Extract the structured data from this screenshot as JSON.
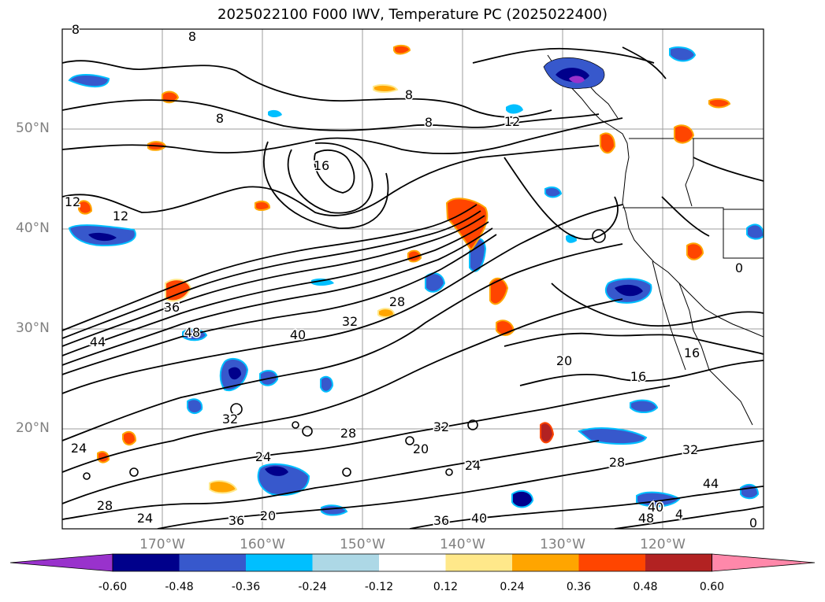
{
  "title": "2025022100 F000 IWV, Temperature PC (2025022400)",
  "map": {
    "region": "North Pacific / Western North America",
    "lat_range": [
      10,
      60
    ],
    "lon_range": [
      -179,
      -109
    ],
    "gridlines": true,
    "lon_labels": [
      "170°W",
      "160°W",
      "150°W",
      "140°W",
      "130°W",
      "120°W"
    ],
    "lat_labels": [
      "50°N",
      "40°N",
      "30°N",
      "20°N"
    ],
    "contour_labels": [
      "8",
      "8",
      "8",
      "8",
      "8",
      "12",
      "12",
      "12",
      "16",
      "16",
      "16",
      "20",
      "20",
      "20",
      "24",
      "24",
      "24",
      "24",
      "28",
      "28",
      "28",
      "28",
      "32",
      "32",
      "32",
      "32",
      "36",
      "36",
      "36",
      "40",
      "40",
      "40",
      "44",
      "44",
      "48",
      "48",
      "4",
      "0",
      "0"
    ],
    "colors": {
      "land_border": "#000000",
      "grid": "#9e9e9e",
      "contour": "#000000"
    }
  },
  "colorbar": {
    "ticks": [
      "-0.60",
      "-0.48",
      "-0.36",
      "-0.24",
      "-0.12",
      "0.12",
      "0.24",
      "0.36",
      "0.48",
      "0.60"
    ],
    "colors": [
      "#9932cc",
      "#00008b",
      "#3758cc",
      "#00bfff",
      "#add8e6",
      "#ffffff",
      "#ffe88a",
      "#ffa500",
      "#ff4500",
      "#b22222",
      "#ff88aa"
    ],
    "extend": "both"
  }
}
